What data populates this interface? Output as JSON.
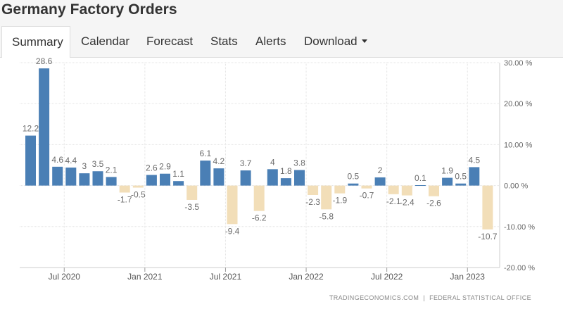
{
  "title": "Germany Factory Orders",
  "tabs": [
    {
      "label": "Summary",
      "active": true
    },
    {
      "label": "Calendar"
    },
    {
      "label": "Forecast"
    },
    {
      "label": "Stats"
    },
    {
      "label": "Alerts"
    },
    {
      "label": "Download",
      "dropdown": true
    }
  ],
  "source_left": "TRADINGECONOMICS.COM",
  "source_separator": "|",
  "source_right": "FEDERAL STATISTICAL OFFICE",
  "colors": {
    "positive": "#4a7fb5",
    "negative": "#f2deb8",
    "grid": "#e3e3e3",
    "label": "#6b6b6b"
  },
  "chart_data": {
    "type": "bar",
    "unit": "%",
    "ylim": [
      -20,
      30
    ],
    "yticks": [
      30,
      20,
      10,
      0,
      -10,
      -20
    ],
    "ytick_labels": [
      "30.00 %",
      "20.00 %",
      "10.00 %",
      "0.00 %",
      "-10.00 %",
      "-20.00 %"
    ],
    "x_tick_labels": [
      {
        "label": "Jul 2020",
        "index": 2.5
      },
      {
        "label": "Jan 2021",
        "index": 8.5
      },
      {
        "label": "Jul 2021",
        "index": 14.5
      },
      {
        "label": "Jan 2022",
        "index": 20.5
      },
      {
        "label": "Jul 2022",
        "index": 26.5
      },
      {
        "label": "Jan 2023",
        "index": 32.5
      }
    ],
    "grid": true,
    "categories": [
      "May 2020",
      "Jun 2020",
      "Jul 2020",
      "Aug 2020",
      "Sep 2020",
      "Oct 2020",
      "Nov 2020",
      "Dec 2020",
      "Jan 2021",
      "Feb 2021",
      "Mar 2021",
      "Apr 2021",
      "May 2021",
      "Jun 2021",
      "Jul 2021",
      "Aug 2021",
      "Sep 2021",
      "Oct 2021",
      "Nov 2021",
      "Dec 2021",
      "Jan 2022",
      "Feb 2022",
      "Mar 2022",
      "Apr 2022",
      "May 2022",
      "Jun 2022",
      "Jul 2022",
      "Aug 2022",
      "Sep 2022",
      "Oct 2022",
      "Nov 2022",
      "Dec 2022",
      "Jan 2023",
      "Feb 2023",
      "Mar 2023"
    ],
    "values": [
      12.2,
      28.6,
      4.6,
      4.4,
      3,
      3.5,
      2.1,
      -1.7,
      -0.5,
      2.6,
      2.9,
      1.1,
      -3.5,
      6.1,
      4.2,
      -9.4,
      3.7,
      -6.2,
      4,
      1.8,
      3.8,
      -2.3,
      -5.8,
      -1.9,
      0.5,
      -0.7,
      2,
      -2.1,
      -2.4,
      0.1,
      -2.6,
      1.9,
      0.5,
      4.5,
      -10.7
    ],
    "labels": [
      "12.2",
      "28.6",
      "4.6",
      "4.4",
      "3",
      "3.5",
      "2.1",
      "-1.7",
      "-0.5",
      "2.6",
      "2.9",
      "1.1",
      "-3.5",
      "6.1",
      "4.2",
      "-9.4",
      "3.7",
      "-6.2",
      "4",
      "1.8",
      "3.8",
      "-2.3",
      "-5.8",
      "-1.9",
      "0.5",
      "-0.7",
      "2",
      "-2.1",
      "-2.4",
      "0.1",
      "-2.6",
      "1.9",
      "0.5",
      "4.5",
      "-10.7"
    ]
  }
}
